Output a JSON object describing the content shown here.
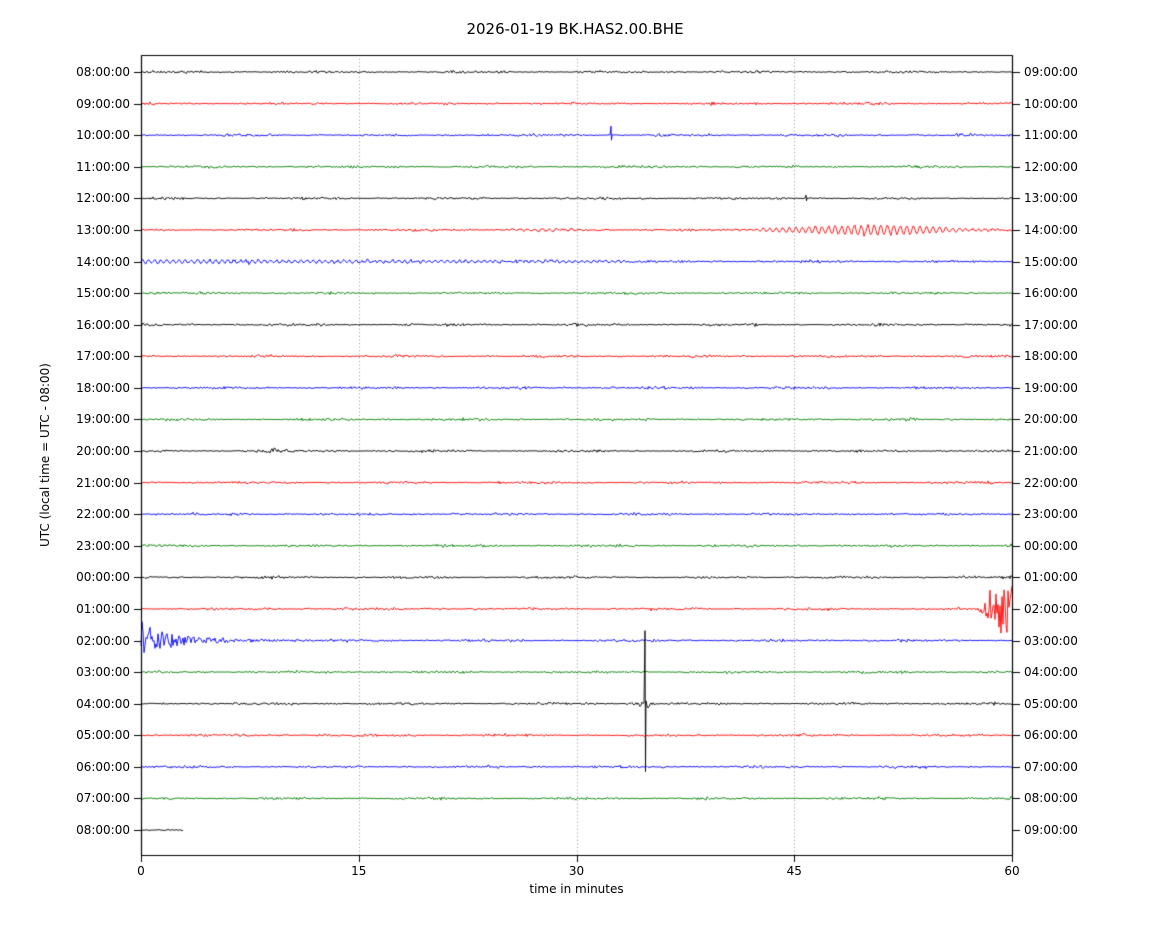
{
  "chart_data": {
    "type": "line",
    "subtype": "seismogram-dayplot-helicorder",
    "title": "2026-01-19 BK.HAS2.00.BHE",
    "xlabel": "time in minutes",
    "ylabel": "UTC (local time = UTC - 08:00)",
    "xlim": [
      0,
      60
    ],
    "x_ticks": [
      0,
      15,
      30,
      45,
      60
    ],
    "grid_minutes": [
      15,
      30,
      45
    ],
    "grid_style": "vertical dotted",
    "minutes_per_row": 60,
    "color_cycle": [
      "#000000",
      "#ff0000",
      "#0000ff",
      "#008000"
    ],
    "rows": [
      {
        "left_label": "08:00:00",
        "right_label": "09:00:00",
        "color": "#000000",
        "events": []
      },
      {
        "left_label": "09:00:00",
        "right_label": "10:00:00",
        "color": "#ff0000",
        "events": []
      },
      {
        "left_label": "10:00:00",
        "right_label": "11:00:00",
        "color": "#0000ff",
        "events": [
          {
            "type": "spike",
            "minute": 32.4,
            "up": 9,
            "down": 5
          }
        ]
      },
      {
        "left_label": "11:00:00",
        "right_label": "12:00:00",
        "color": "#008000",
        "events": []
      },
      {
        "left_label": "12:00:00",
        "right_label": "13:00:00",
        "color": "#000000",
        "events": [
          {
            "type": "spike",
            "minute": 45.8,
            "up": 3.2,
            "down": 2.5
          }
        ]
      },
      {
        "left_label": "13:00:00",
        "right_label": "14:00:00",
        "color": "#ff0000",
        "events": [
          {
            "type": "tremor",
            "start": 24.5,
            "end": 31,
            "amp": 1.1,
            "period": 0.5
          },
          {
            "type": "tremor",
            "start": 40.5,
            "end": 59.8,
            "amp": 5,
            "period": 0.45,
            "peak": 51
          }
        ]
      },
      {
        "left_label": "14:00:00",
        "right_label": "15:00:00",
        "color": "#0000ff",
        "events": [
          {
            "type": "ripple",
            "start": 0,
            "end": 33.5,
            "amp": 1.9,
            "period": 0.42
          }
        ]
      },
      {
        "left_label": "15:00:00",
        "right_label": "16:00:00",
        "color": "#008000",
        "events": []
      },
      {
        "left_label": "16:00:00",
        "right_label": "17:00:00",
        "color": "#000000",
        "events": []
      },
      {
        "left_label": "17:00:00",
        "right_label": "18:00:00",
        "color": "#ff0000",
        "events": []
      },
      {
        "left_label": "18:00:00",
        "right_label": "19:00:00",
        "color": "#0000ff",
        "events": []
      },
      {
        "left_label": "19:00:00",
        "right_label": "20:00:00",
        "color": "#008000",
        "events": []
      },
      {
        "left_label": "20:00:00",
        "right_label": "21:00:00",
        "color": "#000000",
        "events": [
          {
            "type": "fuzz",
            "start": 8.4,
            "end": 9.3,
            "amp": 2.2
          }
        ]
      },
      {
        "left_label": "21:00:00",
        "right_label": "22:00:00",
        "color": "#ff0000",
        "events": []
      },
      {
        "left_label": "22:00:00",
        "right_label": "23:00:00",
        "color": "#0000ff",
        "events": []
      },
      {
        "left_label": "23:00:00",
        "right_label": "00:00:00",
        "color": "#008000",
        "events": []
      },
      {
        "left_label": "00:00:00",
        "right_label": "01:00:00",
        "color": "#000000",
        "events": []
      },
      {
        "left_label": "01:00:00",
        "right_label": "02:00:00",
        "color": "#ff0000",
        "events": [
          {
            "type": "grow_burst",
            "start": 57.3,
            "ramp": 1.3,
            "amp": 24
          }
        ]
      },
      {
        "left_label": "02:00:00",
        "right_label": "03:00:00",
        "color": "#0000ff",
        "events": [
          {
            "type": "decay_burst",
            "amp1": 14,
            "tau1": 1.2,
            "amp2": 7,
            "tau2": 5
          }
        ]
      },
      {
        "left_label": "03:00:00",
        "right_label": "04:00:00",
        "color": "#008000",
        "events": []
      },
      {
        "left_label": "04:00:00",
        "right_label": "05:00:00",
        "color": "#000000",
        "events": [
          {
            "type": "bigspike",
            "minute": 34.7,
            "up": 73,
            "down": 68,
            "coda": 8,
            "codaTau": 0.35
          }
        ]
      },
      {
        "left_label": "05:00:00",
        "right_label": "06:00:00",
        "color": "#ff0000",
        "events": []
      },
      {
        "left_label": "06:00:00",
        "right_label": "07:00:00",
        "color": "#0000ff",
        "events": []
      },
      {
        "left_label": "07:00:00",
        "right_label": "08:00:00",
        "color": "#008000",
        "events": []
      },
      {
        "left_label": "08:00:00",
        "right_label": "09:00:00",
        "color": "#000000",
        "end_minute": 2.9,
        "events": []
      }
    ]
  }
}
